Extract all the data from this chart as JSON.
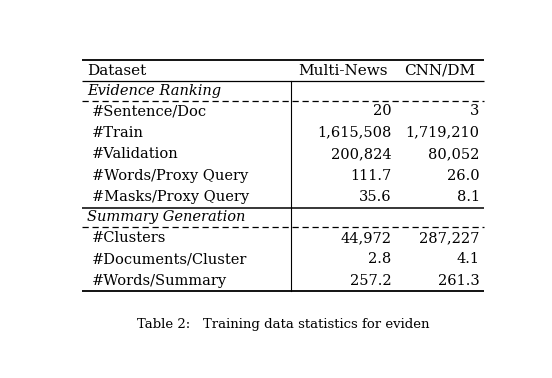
{
  "header": [
    "Dataset",
    "Multi-News",
    "CNN/DM"
  ],
  "section1_title": "Evidence Ranking",
  "section1_rows": [
    [
      "#Sentence/Doc",
      "20",
      "3"
    ],
    [
      "#Train",
      "1,615,508",
      "1,719,210"
    ],
    [
      "#Validation",
      "200,824",
      "80,052"
    ],
    [
      "#Words/Proxy Query",
      "111.7",
      "26.0"
    ],
    [
      "#Masks/Proxy Query",
      "35.6",
      "8.1"
    ]
  ],
  "section2_title": "Summary Generation",
  "section2_rows": [
    [
      "#Clusters",
      "44,972",
      "287,227"
    ],
    [
      "#Documents/Cluster",
      "2.8",
      "4.1"
    ],
    [
      "#Words/Summary",
      "257.2",
      "261.3"
    ]
  ],
  "figsize": [
    5.52,
    3.78
  ],
  "dpi": 100,
  "font_size": 10.5,
  "bg_color": "#ffffff",
  "text_color": "#000000"
}
